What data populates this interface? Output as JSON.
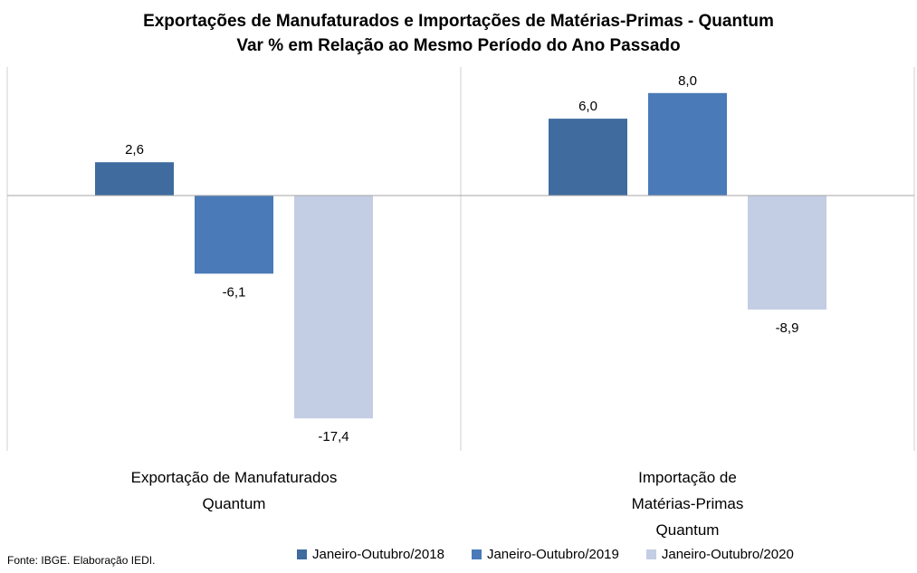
{
  "chart_data": {
    "type": "bar",
    "title": "Exportações de Manufaturados e Importações de Matérias-Primas - Quantum",
    "subtitle": "Var % em Relação ao Mesmo Período do Ano Passado",
    "categories": [
      [
        "Exportação de Manufaturados",
        "Quantum"
      ],
      [
        "Importação de",
        "Matérias-Primas",
        "Quantum"
      ]
    ],
    "series": [
      {
        "name": "Janeiro-Outubro/2018",
        "color": "#3f6b9f",
        "values": [
          2.6,
          6.0
        ],
        "labels": [
          "2,6",
          "6,0"
        ]
      },
      {
        "name": "Janeiro-Outubro/2019",
        "color": "#4a7ab8",
        "values": [
          -6.1,
          8.0
        ],
        "labels": [
          "-6,1",
          "8,0"
        ]
      },
      {
        "name": "Janeiro-Outubro/2020",
        "color": "#c3cde3",
        "values": [
          -17.4,
          -8.9
        ],
        "labels": [
          "-17,4",
          "-8,9"
        ]
      }
    ],
    "grid": false,
    "legend_position": "bottom"
  },
  "footer": {
    "source": "Fonte: IBGE. Elaboração IEDI."
  }
}
